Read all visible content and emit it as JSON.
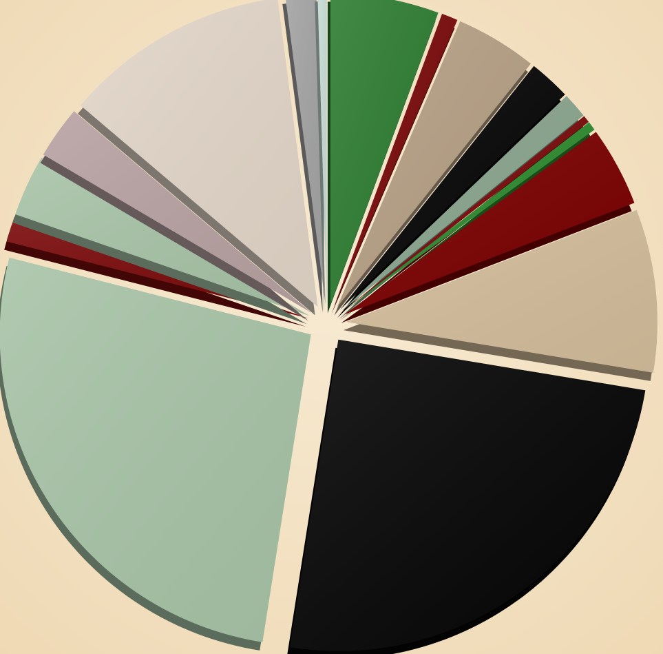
{
  "chart_data": {
    "type": "pie",
    "title": "",
    "style": "3d-exploded",
    "direction": "clockwise",
    "start_angle_deg": 0,
    "background_color": "#f3e3c8",
    "slices": [
      {
        "value": 6.0,
        "color": "#2e7d32"
      },
      {
        "value": 0.9,
        "color": "#7a0a0a"
      },
      {
        "value": 4.5,
        "color": "#b6a085"
      },
      {
        "value": 2.3,
        "color": "#060606"
      },
      {
        "value": 1.4,
        "color": "#8aa58e"
      },
      {
        "value": 0.4,
        "color": "#7a0a0a"
      },
      {
        "value": 0.5,
        "color": "#2e8b2e"
      },
      {
        "value": 4.4,
        "color": "#7a0000"
      },
      {
        "value": 9.0,
        "color": "#d3bd9b"
      },
      {
        "value": 26.5,
        "color": "#060606"
      },
      {
        "value": 28.2,
        "color": "#a8c4a8"
      },
      {
        "value": 1.4,
        "color": "#7a0a0a"
      },
      {
        "value": 3.4,
        "color": "#a8c4a8"
      },
      {
        "value": 2.9,
        "color": "#b8a2a2"
      },
      {
        "value": 12.5,
        "color": "#e2d6c8"
      },
      {
        "value": 1.7,
        "color": "#a3a3a3"
      },
      {
        "value": 0.5,
        "color": "#c8dcd6"
      }
    ]
  }
}
